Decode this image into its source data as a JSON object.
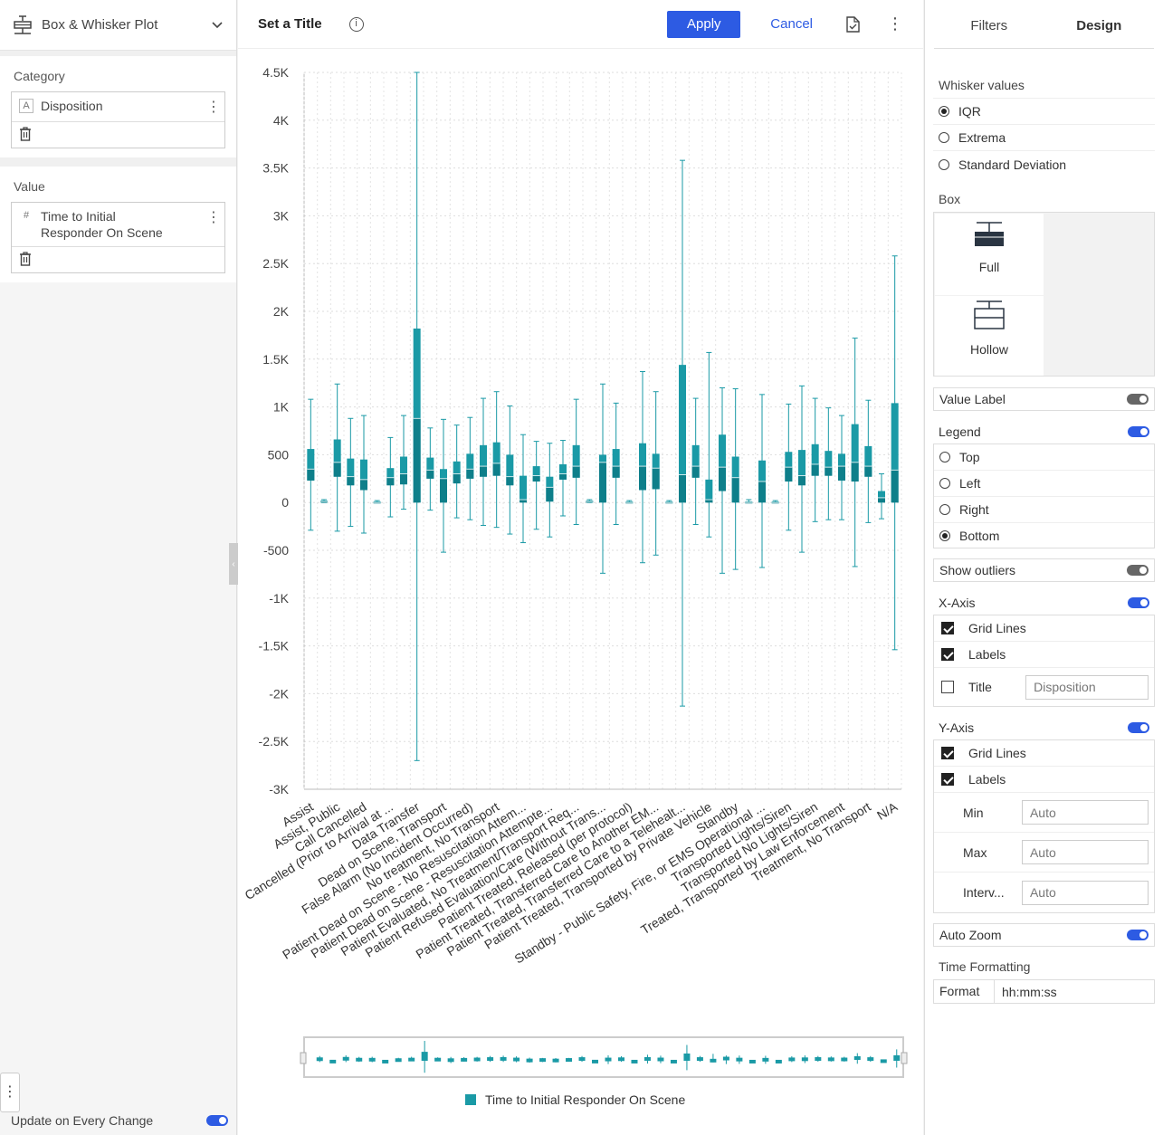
{
  "left_panel": {
    "chart_type": "Box & Whisker Plot",
    "category_label": "Category",
    "category_field": {
      "type": "A",
      "name": "Disposition"
    },
    "value_label": "Value",
    "value_field": {
      "type": "#",
      "name_line1": "Time to Initial",
      "name_line2": "Responder On Scene"
    },
    "update_label": "Update on Every Change"
  },
  "header": {
    "title": "Set a Title",
    "apply_label": "Apply",
    "cancel_label": "Cancel"
  },
  "right_panel": {
    "tabs": [
      "Filters",
      "Design"
    ],
    "whisker_label": "Whisker values",
    "whisker_options": [
      "IQR",
      "Extrema",
      "Standard Deviation"
    ],
    "whisker_selected": 0,
    "box_label": "Box",
    "box_options": [
      "Full",
      "Hollow"
    ],
    "value_label_label": "Value Label",
    "legend_label": "Legend",
    "legend_options": [
      "Top",
      "Left",
      "Right",
      "Bottom"
    ],
    "legend_selected": 3,
    "show_outliers_label": "Show outliers",
    "x_axis_label": "X-Axis",
    "grid_lines_label": "Grid Lines",
    "labels_label": "Labels",
    "title_label": "Title",
    "x_title_placeholder": "Disposition",
    "y_axis_label": "Y-Axis",
    "min_label": "Min",
    "max_label": "Max",
    "interval_label": "Interv...",
    "auto_placeholder": "Auto",
    "auto_zoom_label": "Auto Zoom",
    "time_formatting_label": "Time Formatting",
    "format_label": "Format",
    "format_value": "hh:mm:ss"
  },
  "chart_data": {
    "type": "box",
    "legend": "Time to Initial Responder On Scene",
    "legend_position": "bottom",
    "color": "#1a9aa6",
    "ylim": [
      -3000,
      4500
    ],
    "y_ticks": [
      -3000,
      -2500,
      -2000,
      -1500,
      -1000,
      -500,
      0,
      500,
      1000,
      1500,
      2000,
      2500,
      3000,
      3500,
      4000,
      4500
    ],
    "y_tick_labels": [
      "-3K",
      "-2.5K",
      "-2K",
      "-1.5K",
      "-1K",
      "-500",
      "0",
      "500",
      "1K",
      "1.5K",
      "2K",
      "2.5K",
      "3K",
      "3.5K",
      "4K",
      "4.5K"
    ],
    "grid": true,
    "categories": [
      "Assist",
      "Assist, Public",
      "Call Cancelled",
      "Cancelled (Prior to Arrival at ...",
      "Data Transfer",
      "Dead on Scene, Transport",
      "False Alarm (No Incident Occurred)",
      "No treatment, No Transport",
      "Patient Dead on Scene - No Resuscitation Attem...",
      "Patient Dead on Scene - Resuscitation Attempte...",
      "Patient Evaluated, No Treatment/Transport Req...",
      "Patient Refused Evaluation/Care (Without Trans...",
      "Patient Treated, Released (per protocol)",
      "Patient Treated, Transferred Care to Another EM...",
      "Patient Treated, Transferred Care to a Telehealt...",
      "Patient Treated, Transported by Private Vehicle",
      "Standby",
      "Standby - Public Safety, Fire, or EMS Operational ...",
      "Transported Lights/Siren",
      "Transported No Lights/Siren",
      "Treated, Transported by Law Enforcement",
      "Treatment, No Transport",
      "N/A"
    ],
    "boxes": [
      [
        -290,
        230,
        350,
        560,
        1080
      ],
      [
        0,
        0,
        10,
        20,
        30
      ],
      [
        -300,
        270,
        420,
        660,
        1240
      ],
      [
        -250,
        180,
        270,
        460,
        880
      ],
      [
        -320,
        130,
        240,
        450,
        910
      ],
      [
        0,
        0,
        0,
        10,
        20
      ],
      [
        -150,
        180,
        260,
        360,
        680
      ],
      [
        -70,
        190,
        300,
        480,
        910
      ],
      [
        -2700,
        0,
        880,
        1820,
        4500
      ],
      [
        -80,
        250,
        340,
        470,
        780
      ],
      [
        -520,
        0,
        250,
        350,
        870
      ],
      [
        -160,
        200,
        300,
        430,
        810
      ],
      [
        -180,
        250,
        350,
        510,
        890
      ],
      [
        -240,
        270,
        380,
        600,
        1090
      ],
      [
        -260,
        280,
        410,
        630,
        1160
      ],
      [
        -330,
        180,
        270,
        500,
        1010
      ],
      [
        -420,
        0,
        30,
        280,
        710
      ],
      [
        -280,
        220,
        280,
        380,
        640
      ],
      [
        -360,
        10,
        160,
        270,
        620
      ],
      [
        -140,
        240,
        300,
        400,
        650
      ],
      [
        -230,
        260,
        380,
        600,
        1080
      ],
      [
        0,
        0,
        10,
        20,
        30
      ],
      [
        -740,
        0,
        420,
        500,
        1240
      ],
      [
        -230,
        260,
        380,
        560,
        1040
      ],
      [
        0,
        0,
        0,
        10,
        20
      ],
      [
        -630,
        130,
        380,
        620,
        1370
      ],
      [
        -550,
        140,
        360,
        510,
        1160
      ],
      [
        0,
        0,
        0,
        10,
        20
      ],
      [
        -2130,
        0,
        290,
        1440,
        3580
      ],
      [
        -230,
        260,
        380,
        600,
        1090
      ],
      [
        -360,
        0,
        30,
        240,
        1570
      ],
      [
        -740,
        120,
        370,
        710,
        1200
      ],
      [
        -700,
        0,
        260,
        480,
        1190
      ],
      [
        0,
        0,
        0,
        10,
        30
      ],
      [
        -680,
        0,
        220,
        440,
        1130
      ],
      [
        0,
        0,
        0,
        10,
        20
      ],
      [
        -290,
        220,
        370,
        530,
        1030
      ],
      [
        -520,
        180,
        280,
        550,
        1220
      ],
      [
        -200,
        280,
        400,
        610,
        1090
      ],
      [
        -180,
        280,
        370,
        540,
        990
      ],
      [
        -180,
        230,
        380,
        510,
        910
      ],
      [
        -670,
        220,
        420,
        820,
        1720
      ],
      [
        -210,
        270,
        380,
        590,
        1070
      ],
      [
        -170,
        0,
        50,
        120,
        300
      ],
      [
        -1540,
        0,
        340,
        1040,
        2580
      ]
    ]
  }
}
